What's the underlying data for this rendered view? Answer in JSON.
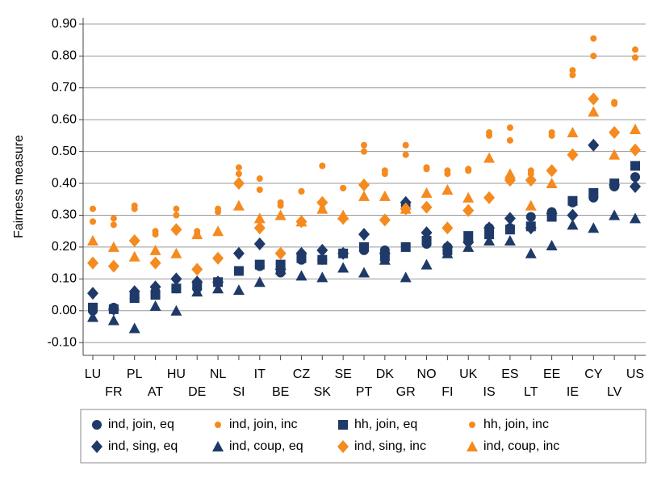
{
  "chart_data": {
    "type": "scatter",
    "y_label": "Fairness measure",
    "categories": [
      "LU",
      "FR",
      "PL",
      "AT",
      "HU",
      "DE",
      "NL",
      "SI",
      "IT",
      "BE",
      "CZ",
      "SK",
      "SE",
      "PT",
      "DK",
      "GR",
      "NO",
      "FI",
      "UK",
      "IS",
      "ES",
      "LT",
      "EE",
      "IE",
      "CY",
      "LV",
      "US"
    ],
    "ylim": [
      -0.14,
      0.92
    ],
    "yticks": [
      {
        "value": -0.1,
        "label": "-0.10"
      },
      {
        "value": 0,
        "label": "0.00"
      },
      {
        "value": 0.1,
        "label": "0.10"
      },
      {
        "value": 0.2,
        "label": "0.20"
      },
      {
        "value": 0.3,
        "label": "0.30"
      },
      {
        "value": 0.4,
        "label": "0.40"
      },
      {
        "value": 0.5,
        "label": "0.50"
      },
      {
        "value": 0.6,
        "label": "0.60"
      },
      {
        "value": 0.7,
        "label": "0.70"
      },
      {
        "value": 0.8,
        "label": "0.80"
      },
      {
        "value": 0.9,
        "label": "0.90"
      }
    ],
    "grid": true,
    "series": [
      {
        "name": "ind, join, eq",
        "color": "#1f3a68",
        "marker": "circle",
        "values": [
          0.0,
          0.01,
          0.04,
          0.06,
          0.07,
          0.07,
          0.09,
          0.125,
          0.14,
          0.12,
          0.16,
          0.16,
          0.18,
          0.19,
          0.19,
          0.33,
          0.21,
          0.2,
          0.22,
          0.26,
          0.26,
          0.295,
          0.31,
          0.34,
          0.355,
          0.39,
          0.42
        ]
      },
      {
        "name": "ind, join, inc",
        "color": "#f58a1f",
        "marker": "dot",
        "values": [
          0.28,
          0.27,
          0.32,
          0.24,
          0.3,
          0.24,
          0.31,
          0.43,
          0.38,
          0.33,
          0.375,
          0.32,
          0.385,
          0.52,
          0.43,
          0.49,
          0.445,
          0.43,
          0.44,
          0.55,
          0.535,
          0.44,
          0.55,
          0.74,
          0.855,
          0.65,
          0.82
        ]
      },
      {
        "name": "hh, join, eq",
        "color": "#1f3a68",
        "marker": "square",
        "values": [
          0.01,
          0.005,
          0.04,
          0.05,
          0.07,
          0.08,
          0.09,
          0.125,
          0.145,
          0.145,
          0.165,
          0.16,
          0.18,
          0.2,
          0.17,
          0.2,
          0.22,
          0.19,
          0.235,
          0.24,
          0.255,
          0.265,
          0.295,
          0.345,
          0.37,
          0.4,
          0.455
        ]
      },
      {
        "name": "hh, join, inc",
        "color": "#f58a1f",
        "marker": "dot",
        "values": [
          0.32,
          0.29,
          0.33,
          0.25,
          0.32,
          0.25,
          0.32,
          0.45,
          0.415,
          0.34,
          0.375,
          0.455,
          0.385,
          0.5,
          0.44,
          0.52,
          0.45,
          0.44,
          0.445,
          0.56,
          0.575,
          0.43,
          0.56,
          0.755,
          0.8,
          0.655,
          0.795
        ]
      },
      {
        "name": "ind, sing, eq",
        "color": "#1f3a68",
        "marker": "diamond",
        "values": [
          0.055,
          0.005,
          0.06,
          0.075,
          0.1,
          0.09,
          0.09,
          0.18,
          0.21,
          0.13,
          0.18,
          0.19,
          0.18,
          0.24,
          0.18,
          0.34,
          0.245,
          0.2,
          0.215,
          0.26,
          0.29,
          0.26,
          0.305,
          0.3,
          0.52,
          0.395,
          0.39
        ]
      },
      {
        "name": "ind, coup, eq",
        "color": "#1f3a68",
        "marker": "triangle",
        "values": [
          -0.02,
          -0.03,
          -0.055,
          0.015,
          0.0,
          0.06,
          0.07,
          0.065,
          0.09,
          0.13,
          0.11,
          0.105,
          0.135,
          0.12,
          0.16,
          0.105,
          0.145,
          0.18,
          0.2,
          0.22,
          0.22,
          0.18,
          0.205,
          0.27,
          0.26,
          0.3,
          0.29
        ]
      },
      {
        "name": "ind, sing, inc",
        "color": "#f58a1f",
        "marker": "diamond",
        "values": [
          0.15,
          0.14,
          0.22,
          0.15,
          0.255,
          0.13,
          0.165,
          0.4,
          0.26,
          0.18,
          0.28,
          0.34,
          0.29,
          0.395,
          0.285,
          0.32,
          0.325,
          0.26,
          0.315,
          0.355,
          0.41,
          0.41,
          0.44,
          0.49,
          0.665,
          0.56,
          0.505
        ]
      },
      {
        "name": "ind, coup, inc",
        "color": "#f58a1f",
        "marker": "triangle",
        "values": [
          0.22,
          0.2,
          0.17,
          0.19,
          0.18,
          0.24,
          0.25,
          0.33,
          0.29,
          0.3,
          0.28,
          0.32,
          0.3,
          0.36,
          0.36,
          0.32,
          0.37,
          0.38,
          0.355,
          0.48,
          0.43,
          0.33,
          0.4,
          0.56,
          0.625,
          0.49,
          0.57
        ]
      }
    ]
  }
}
